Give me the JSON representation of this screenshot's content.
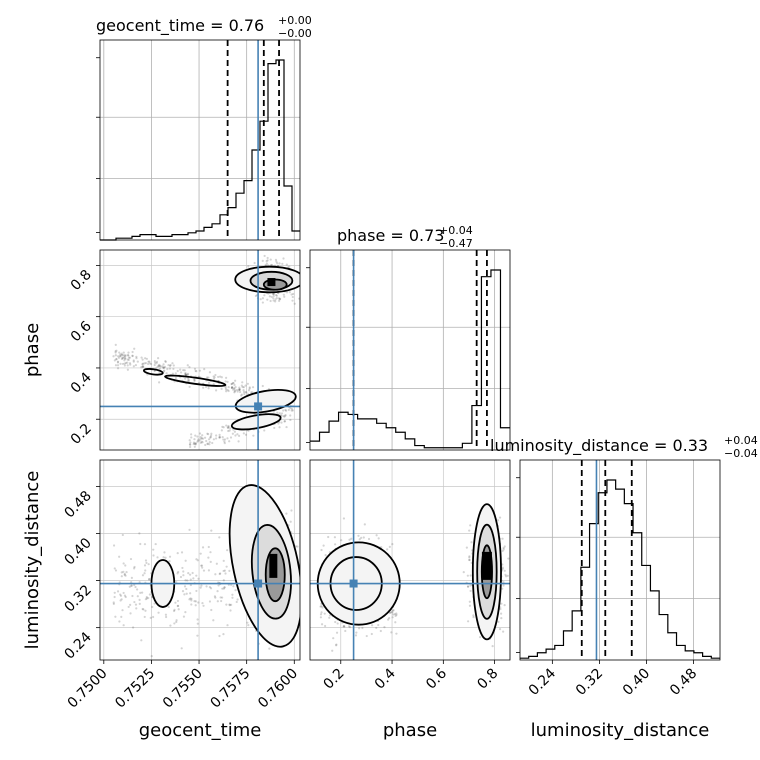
{
  "chart_data": {
    "type": "corner",
    "params": [
      "geocent_time",
      "phase",
      "luminosity_distance"
    ],
    "truth_color": "#4682b4",
    "truths": {
      "geocent_time": 0.7581,
      "phase": 0.25,
      "luminosity_distance": 0.315
    },
    "ranges": {
      "geocent_time": [
        0.7498,
        0.7603
      ],
      "phase": [
        0.08,
        0.86
      ],
      "luminosity_distance": [
        0.185,
        0.525
      ]
    },
    "ticks": {
      "geocent_time": {
        "values": [
          0.75,
          0.7525,
          0.755,
          0.7575,
          0.76
        ],
        "labels": [
          "0.7500",
          "0.7525",
          "0.7550",
          "0.7575",
          "0.7600"
        ]
      },
      "phase": {
        "values": [
          0.2,
          0.4,
          0.6,
          0.8
        ],
        "labels": [
          "0.2",
          "0.4",
          "0.6",
          "0.8"
        ]
      },
      "luminosity_distance": {
        "values": [
          0.24,
          0.32,
          0.4,
          0.48
        ],
        "labels": [
          "0.24",
          "0.32",
          "0.40",
          "0.48"
        ]
      }
    },
    "titles": [
      {
        "param": "geocent_time",
        "text": "geocent_time = 0.76",
        "plus": "+0.00",
        "minus": "−0.00"
      },
      {
        "param": "phase",
        "text": "phase = 0.73",
        "plus": "+0.04",
        "minus": "−0.47"
      },
      {
        "param": "luminosity_distance",
        "text": "luminosity_distance = 0.33",
        "plus": "+0.04",
        "minus": "−0.04"
      }
    ],
    "quantiles": {
      "geocent_time": [
        0.7565,
        0.7584,
        0.7592
      ],
      "phase": [
        0.25,
        0.73,
        0.77
      ],
      "luminosity_distance": [
        0.29,
        0.33,
        0.375
      ]
    },
    "histograms": {
      "geocent_time": {
        "range": [
          0.7498,
          0.7603
        ],
        "counts": [
          0,
          0,
          1,
          1,
          2,
          3,
          3,
          2,
          2,
          3,
          3,
          4,
          5,
          7,
          9,
          14,
          18,
          26,
          33,
          50,
          66,
          98,
          100,
          30,
          5
        ]
      },
      "phase": {
        "range": [
          0.08,
          0.86
        ],
        "counts": [
          4,
          8,
          13,
          17,
          16,
          14,
          14,
          12,
          10,
          8,
          5,
          2,
          1,
          1,
          1,
          1,
          3,
          20,
          78,
          81,
          10
        ]
      },
      "luminosity_distance": {
        "range": [
          0.185,
          0.525
        ],
        "counts": [
          1,
          2,
          4,
          6,
          8,
          16,
          27,
          51,
          75,
          92,
          99,
          94,
          86,
          70,
          52,
          38,
          25,
          15,
          8,
          5,
          4,
          2,
          1
        ]
      }
    },
    "axis_labels": {
      "geocent_time": "geocent_time",
      "phase": "phase",
      "luminosity_distance": "luminosity_distance"
    },
    "grid": true
  }
}
